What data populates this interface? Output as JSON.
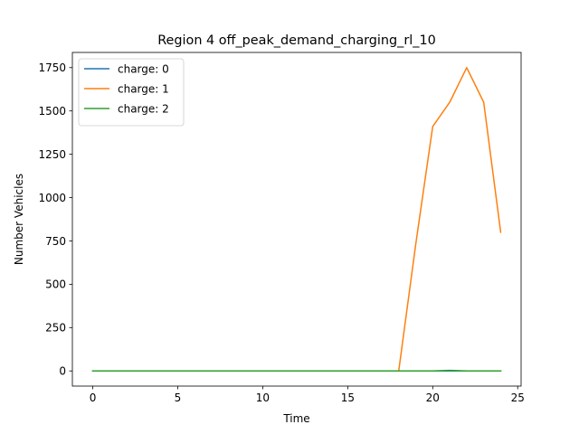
{
  "chart_data": {
    "type": "line",
    "title": "Region 4 off_peak_demand_charging_rl_10",
    "xlabel": "Time",
    "ylabel": "Number Vehicles",
    "xlim": [
      -1.2,
      25.2
    ],
    "ylim": [
      -87.5,
      1837.5
    ],
    "xticks": [
      0,
      5,
      10,
      15,
      20,
      25
    ],
    "yticks": [
      0,
      250,
      500,
      750,
      1000,
      1250,
      1500,
      1750
    ],
    "grid": false,
    "legend_position": "top-left",
    "x": [
      0,
      1,
      2,
      3,
      4,
      5,
      6,
      7,
      8,
      9,
      10,
      11,
      12,
      13,
      14,
      15,
      16,
      17,
      18,
      19,
      20,
      21,
      22,
      23,
      24
    ],
    "series": [
      {
        "name": "charge: 0",
        "color": "#1f77b4",
        "values": [
          0,
          0,
          0,
          0,
          0,
          0,
          0,
          0,
          0,
          0,
          0,
          0,
          0,
          0,
          0,
          0,
          0,
          0,
          0,
          0,
          0,
          0,
          0,
          0,
          0
        ]
      },
      {
        "name": "charge: 1",
        "color": "#ff7f0e",
        "values": [
          0,
          0,
          0,
          0,
          0,
          0,
          0,
          0,
          0,
          0,
          0,
          0,
          0,
          0,
          0,
          0,
          0,
          0,
          0,
          730,
          1410,
          1550,
          1750,
          1550,
          800
        ]
      },
      {
        "name": "charge: 2",
        "color": "#2ca02c",
        "values": [
          0,
          0,
          0,
          0,
          0,
          0,
          0,
          0,
          0,
          0,
          0,
          0,
          0,
          0,
          0,
          0,
          0,
          0,
          0,
          0,
          0,
          3,
          0,
          0,
          0
        ]
      }
    ]
  }
}
